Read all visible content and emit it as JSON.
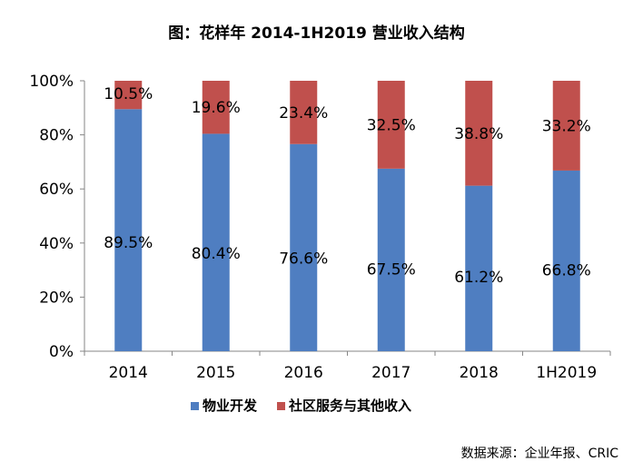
{
  "chart_data": {
    "type": "bar",
    "stacked": true,
    "title": "图：花样年 2014-1H2019 营业收入结构",
    "xlabel": "",
    "ylabel": "",
    "ylim": [
      0,
      100
    ],
    "y_ticks": [
      "0%",
      "20%",
      "40%",
      "60%",
      "80%",
      "100%"
    ],
    "categories": [
      "2014",
      "2015",
      "2016",
      "2017",
      "2018",
      "1H2019"
    ],
    "series": [
      {
        "name": "物业开发",
        "color": "#4f7ec1",
        "values": [
          89.5,
          80.4,
          76.6,
          67.5,
          61.2,
          66.8
        ],
        "labels": [
          "89.5%",
          "80.4%",
          "76.6%",
          "67.5%",
          "61.2%",
          "66.8%"
        ]
      },
      {
        "name": "社区服务与其他收入",
        "color": "#c0504d",
        "values": [
          10.5,
          19.6,
          23.4,
          32.5,
          38.8,
          33.2
        ],
        "labels": [
          "10.5%",
          "19.6%",
          "23.4%",
          "32.5%",
          "38.8%",
          "33.2%"
        ]
      }
    ],
    "legend_position": "bottom",
    "grid": false
  },
  "source": "数据来源：企业年报、CRIC"
}
